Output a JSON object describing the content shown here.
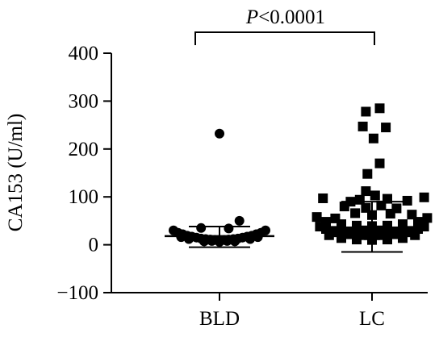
{
  "chart_data": {
    "type": "scatter",
    "ylabel": "CA153 (U/ml)",
    "ylim": [
      -100,
      400
    ],
    "yticks": [
      -100,
      0,
      100,
      200,
      300,
      400
    ],
    "categories": [
      "BLD",
      "LC"
    ],
    "annotation": {
      "p_letter": "P",
      "p_rest": "<0.0001"
    },
    "grid": false,
    "colors": {
      "points": "#000000",
      "axis": "#000000"
    },
    "series": [
      {
        "category": "BLD",
        "marker": "circle",
        "mean": 18,
        "sd_upper": 38,
        "sd_lower": -5,
        "points": [
          [
            0,
            232
          ],
          [
            -0.12,
            35
          ],
          [
            0.06,
            34
          ],
          [
            0.13,
            50
          ],
          [
            -0.3,
            30
          ],
          [
            -0.27,
            25
          ],
          [
            -0.24,
            22
          ],
          [
            -0.21,
            19
          ],
          [
            -0.18,
            17
          ],
          [
            -0.15,
            15
          ],
          [
            -0.12,
            13
          ],
          [
            -0.09,
            12
          ],
          [
            -0.06,
            11
          ],
          [
            -0.03,
            10
          ],
          [
            0,
            10
          ],
          [
            0.03,
            10
          ],
          [
            0.06,
            11
          ],
          [
            0.09,
            12
          ],
          [
            0.12,
            13
          ],
          [
            0.15,
            15
          ],
          [
            0.18,
            17
          ],
          [
            0.21,
            19
          ],
          [
            0.24,
            22
          ],
          [
            0.27,
            25
          ],
          [
            0.3,
            30
          ],
          [
            -0.2,
            12
          ],
          [
            -0.1,
            7
          ],
          [
            0,
            6
          ],
          [
            0.1,
            7
          ],
          [
            0.2,
            12
          ],
          [
            -0.25,
            16
          ],
          [
            0.25,
            16
          ],
          [
            -0.05,
            8
          ],
          [
            0.05,
            8
          ]
        ]
      },
      {
        "category": "LC",
        "marker": "square",
        "mean": 36,
        "sd_upper": 90,
        "sd_lower": -15,
        "points": [
          [
            -0.04,
            278
          ],
          [
            0.05,
            285
          ],
          [
            -0.06,
            247
          ],
          [
            0.09,
            245
          ],
          [
            0.01,
            222
          ],
          [
            0.05,
            170
          ],
          [
            -0.03,
            148
          ],
          [
            -0.04,
            112
          ],
          [
            0.02,
            103
          ],
          [
            -0.32,
            97
          ],
          [
            -0.14,
            90
          ],
          [
            -0.08,
            94
          ],
          [
            0.1,
            96
          ],
          [
            0.23,
            92
          ],
          [
            0.34,
            99
          ],
          [
            -0.18,
            80
          ],
          [
            -0.04,
            77
          ],
          [
            0.06,
            82
          ],
          [
            0.16,
            76
          ],
          [
            -0.11,
            66
          ],
          [
            0.0,
            62
          ],
          [
            0.12,
            65
          ],
          [
            0.26,
            63
          ],
          [
            -0.36,
            58
          ],
          [
            -0.24,
            55
          ],
          [
            0.36,
            56
          ],
          [
            -0.3,
            48
          ],
          [
            -0.2,
            43
          ],
          [
            -0.1,
            40
          ],
          [
            0,
            39
          ],
          [
            0.1,
            40
          ],
          [
            0.2,
            43
          ],
          [
            0.3,
            48
          ],
          [
            -0.34,
            38
          ],
          [
            -0.3,
            33
          ],
          [
            -0.26,
            29
          ],
          [
            -0.22,
            26
          ],
          [
            -0.18,
            24
          ],
          [
            -0.14,
            22
          ],
          [
            -0.1,
            21
          ],
          [
            -0.06,
            20
          ],
          [
            -0.02,
            20
          ],
          [
            0.02,
            20
          ],
          [
            0.06,
            20
          ],
          [
            0.1,
            21
          ],
          [
            0.14,
            22
          ],
          [
            0.18,
            24
          ],
          [
            0.22,
            26
          ],
          [
            0.26,
            29
          ],
          [
            0.3,
            33
          ],
          [
            0.34,
            38
          ],
          [
            -0.28,
            20
          ],
          [
            -0.2,
            14
          ],
          [
            -0.1,
            11
          ],
          [
            0,
            10
          ],
          [
            0.1,
            11
          ],
          [
            0.2,
            14
          ],
          [
            0.28,
            20
          ],
          [
            -0.15,
            28
          ],
          [
            0.15,
            28
          ],
          [
            -0.05,
            30
          ],
          [
            0.05,
            30
          ]
        ]
      }
    ]
  }
}
